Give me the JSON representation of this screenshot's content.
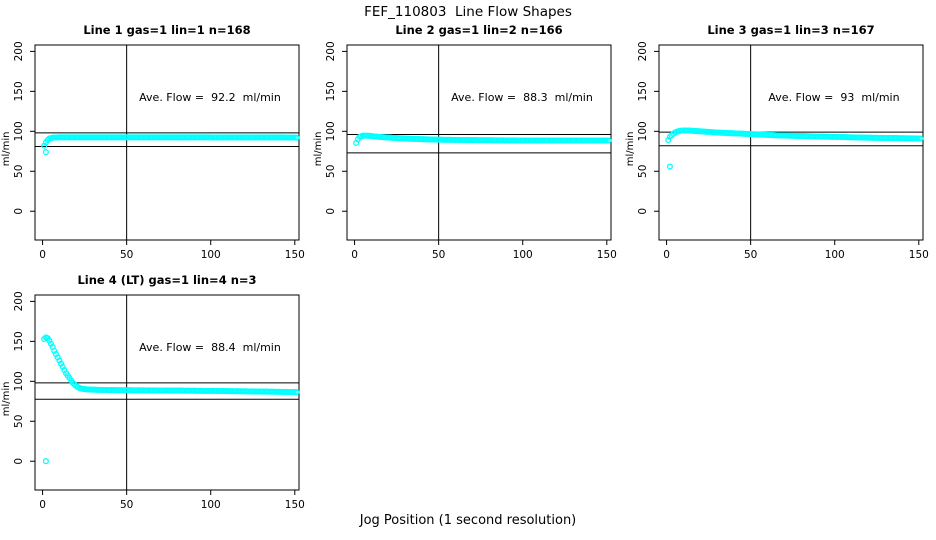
{
  "page": {
    "title": "FEF_110803  Line Flow Shapes",
    "xlabel": "Jog Position (1 second resolution)",
    "background": "#ffffff"
  },
  "style": {
    "point_color": "#00ffff",
    "axis_color": "#000000"
  },
  "chart_data": [
    {
      "type": "scatter",
      "title": "Line 1 gas=1 lin=1 n=168",
      "annotation": "Ave. Flow =  92.2  ml/min",
      "ave_flow_ml_min": 92.2,
      "n_points": 168,
      "ylabel": "ml/min",
      "x_ticks": [
        0,
        50,
        100,
        150
      ],
      "y_ticks": [
        0,
        50,
        100,
        150,
        200
      ],
      "x_domain": [
        -4.5,
        152.5
      ],
      "y_domain": [
        -36,
        208
      ],
      "ref_lines_y": [
        98,
        81
      ],
      "ref_line_x": 50,
      "x_range": [
        1,
        151
      ],
      "anchors": [
        [
          1,
          82
        ],
        [
          2,
          86
        ],
        [
          3,
          89
        ],
        [
          4,
          91
        ],
        [
          6,
          92
        ],
        [
          10,
          92.5
        ],
        [
          80,
          92.5
        ],
        [
          150,
          92.3
        ],
        [
          151,
          92
        ]
      ],
      "outliers": [
        [
          2,
          74
        ]
      ]
    },
    {
      "type": "scatter",
      "title": "Line 2 gas=1 lin=2 n=166",
      "annotation": "Ave. Flow =  88.3  ml/min",
      "ave_flow_ml_min": 88.3,
      "n_points": 166,
      "ylabel": "ml/min",
      "x_ticks": [
        0,
        50,
        100,
        150
      ],
      "y_ticks": [
        0,
        50,
        100,
        150,
        200
      ],
      "x_domain": [
        -4.5,
        152.5
      ],
      "y_domain": [
        -36,
        208
      ],
      "ref_lines_y": [
        96,
        73
      ],
      "ref_line_x": 50,
      "x_range": [
        1,
        151
      ],
      "anchors": [
        [
          1,
          85.5
        ],
        [
          2,
          90
        ],
        [
          3,
          93
        ],
        [
          5,
          94.5
        ],
        [
          8,
          94.5
        ],
        [
          12,
          93.5
        ],
        [
          18,
          92.5
        ],
        [
          25,
          91.5
        ],
        [
          35,
          90.5
        ],
        [
          50,
          89.5
        ],
        [
          70,
          89
        ],
        [
          100,
          88.5
        ],
        [
          151,
          88.5
        ]
      ],
      "outliers": []
    },
    {
      "type": "scatter",
      "title": "Line 3 gas=1 lin=3 n=167",
      "annotation": "Ave. Flow =  93  ml/min",
      "ave_flow_ml_min": 93,
      "n_points": 167,
      "ylabel": "ml/min",
      "x_ticks": [
        0,
        50,
        100,
        150
      ],
      "y_ticks": [
        0,
        50,
        100,
        150,
        200
      ],
      "x_domain": [
        -4.5,
        152.5
      ],
      "y_domain": [
        -36,
        208
      ],
      "ref_lines_y": [
        99,
        82
      ],
      "ref_line_x": 50,
      "x_range": [
        1,
        151
      ],
      "anchors": [
        [
          1,
          89
        ],
        [
          2,
          93
        ],
        [
          4,
          97
        ],
        [
          6,
          99.5
        ],
        [
          9,
          101
        ],
        [
          13,
          101
        ],
        [
          20,
          100
        ],
        [
          30,
          98.5
        ],
        [
          45,
          97
        ],
        [
          65,
          95
        ],
        [
          90,
          93.5
        ],
        [
          120,
          92
        ],
        [
          151,
          91
        ]
      ],
      "outliers": [
        [
          2,
          56
        ]
      ]
    },
    {
      "type": "scatter",
      "title": "Line 4 (LT) gas=1 lin=4 n=3",
      "annotation": "Ave. Flow =  88.4  ml/min",
      "ave_flow_ml_min": 88.4,
      "n_points": 3,
      "ylabel": "ml/min",
      "x_ticks": [
        0,
        50,
        100,
        150
      ],
      "y_ticks": [
        0,
        50,
        100,
        150,
        200
      ],
      "x_domain": [
        -4.5,
        152.5
      ],
      "y_domain": [
        -36,
        208
      ],
      "ref_lines_y": [
        98,
        77.5
      ],
      "ref_line_x": 50,
      "x_range": [
        1,
        151
      ],
      "anchors": [
        [
          1,
          153
        ],
        [
          2,
          155
        ],
        [
          3,
          154
        ],
        [
          4,
          151
        ],
        [
          5,
          147
        ],
        [
          6,
          143
        ],
        [
          7,
          138
        ],
        [
          8,
          134
        ],
        [
          9,
          130
        ],
        [
          10,
          126
        ],
        [
          11,
          122
        ],
        [
          12,
          118
        ],
        [
          13,
          114
        ],
        [
          14,
          110
        ],
        [
          15,
          107
        ],
        [
          16,
          104
        ],
        [
          17,
          101
        ],
        [
          18,
          98
        ],
        [
          19,
          96
        ],
        [
          20,
          94
        ],
        [
          22,
          91.5
        ],
        [
          24,
          90.5
        ],
        [
          27,
          89.8
        ],
        [
          30,
          89.5
        ],
        [
          40,
          89
        ],
        [
          60,
          88.7
        ],
        [
          90,
          88.2
        ],
        [
          120,
          87.5
        ],
        [
          151,
          86.5
        ]
      ],
      "outliers": [
        [
          2,
          0
        ]
      ]
    }
  ]
}
